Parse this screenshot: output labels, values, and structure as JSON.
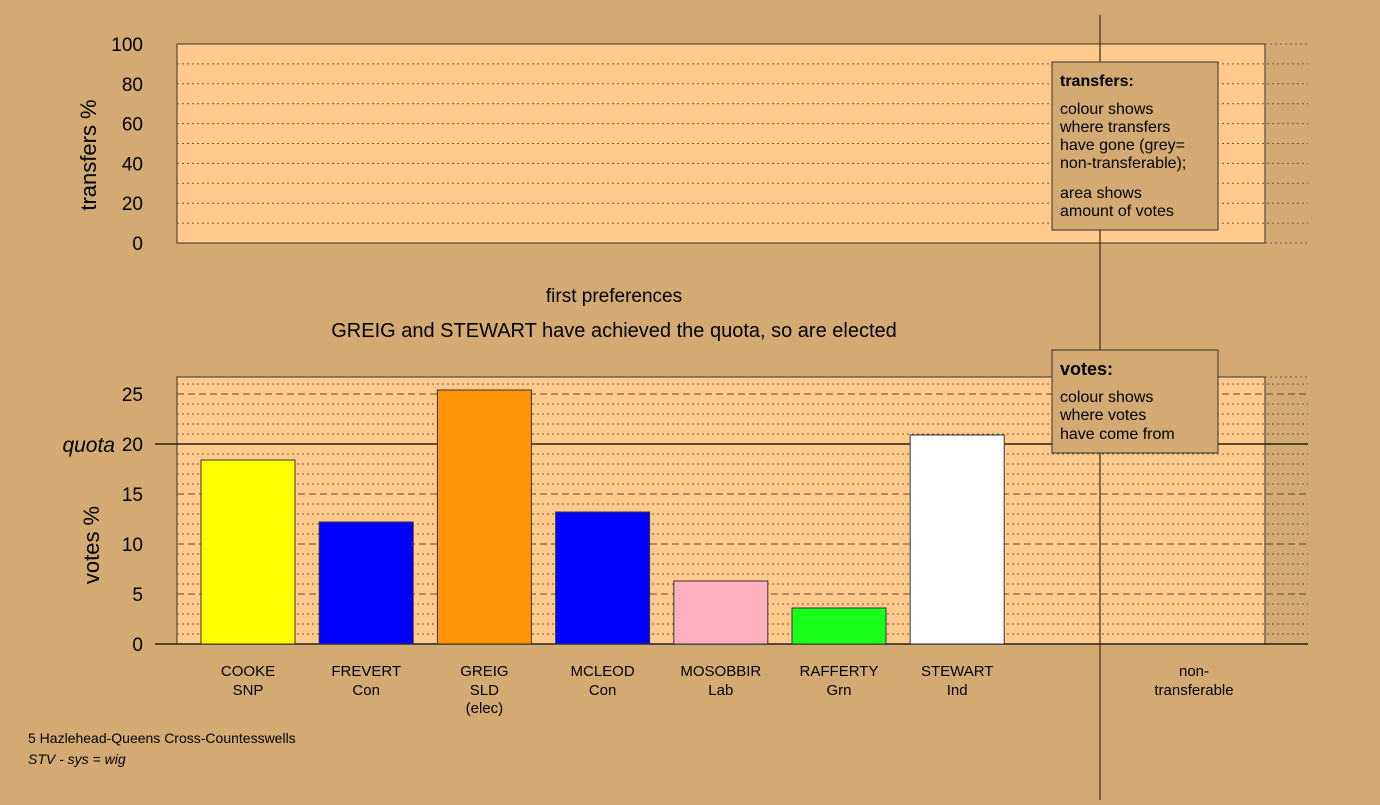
{
  "colors": {
    "background": "#d4aa73",
    "plot_fill": "#ffca8b",
    "legend_fill": "#d4aa73"
  },
  "transfers_chart": {
    "ylabel": "transfers %",
    "y_ticks": [
      "0",
      "20",
      "40",
      "60",
      "80",
      "100"
    ],
    "legend": {
      "title": "transfers:",
      "lines": [
        "colour shows",
        "where transfers",
        "have gone (grey=",
        "non-transferable);",
        "area shows",
        "amount of votes"
      ]
    }
  },
  "titles": {
    "stage": "first preferences",
    "status": "GREIG and STEWART have achieved the quota, so are elected"
  },
  "votes_chart": {
    "ylabel": "votes %",
    "quota_label": "quota",
    "y_ticks": [
      "0",
      "5",
      "10",
      "15",
      "20",
      "25"
    ],
    "legend": {
      "title": "votes:",
      "lines": [
        "colour shows",
        "where votes",
        "have come from"
      ]
    }
  },
  "footer": {
    "ward": "5 Hazlehead-Queens Cross-Countesswells",
    "system": "STV - sys = wig"
  },
  "chart_data": [
    {
      "type": "bar",
      "title": "",
      "xlabel": "",
      "ylabel": "transfers %",
      "ylim": [
        0,
        100
      ],
      "categories": [],
      "values": [],
      "grid": true
    },
    {
      "type": "bar",
      "title": "first preferences",
      "xlabel": "",
      "ylabel": "votes %",
      "ylim": [
        0,
        26.7
      ],
      "quota": 20,
      "grid": true,
      "legend_position": "top-right",
      "categories": [
        {
          "name": "COOKE",
          "party": "SNP",
          "note": ""
        },
        {
          "name": "FREVERT",
          "party": "Con",
          "note": ""
        },
        {
          "name": "GREIG",
          "party": "SLD",
          "note": "(elec)"
        },
        {
          "name": "MCLEOD",
          "party": "Con",
          "note": ""
        },
        {
          "name": "MOSOBBIR",
          "party": "Lab",
          "note": ""
        },
        {
          "name": "RAFFERTY",
          "party": "Grn",
          "note": ""
        },
        {
          "name": "STEWART",
          "party": "Ind",
          "note": ""
        }
      ],
      "values": [
        18.4,
        12.2,
        25.4,
        13.2,
        6.3,
        3.6,
        20.9
      ],
      "bar_colors": [
        "#ffff00",
        "#0000ff",
        "#ff9409",
        "#0000ff",
        "#ffb0c0",
        "#1aff1a",
        "#ffffff"
      ],
      "extra_category": {
        "line1": "non-",
        "line2": "transferable"
      }
    }
  ]
}
